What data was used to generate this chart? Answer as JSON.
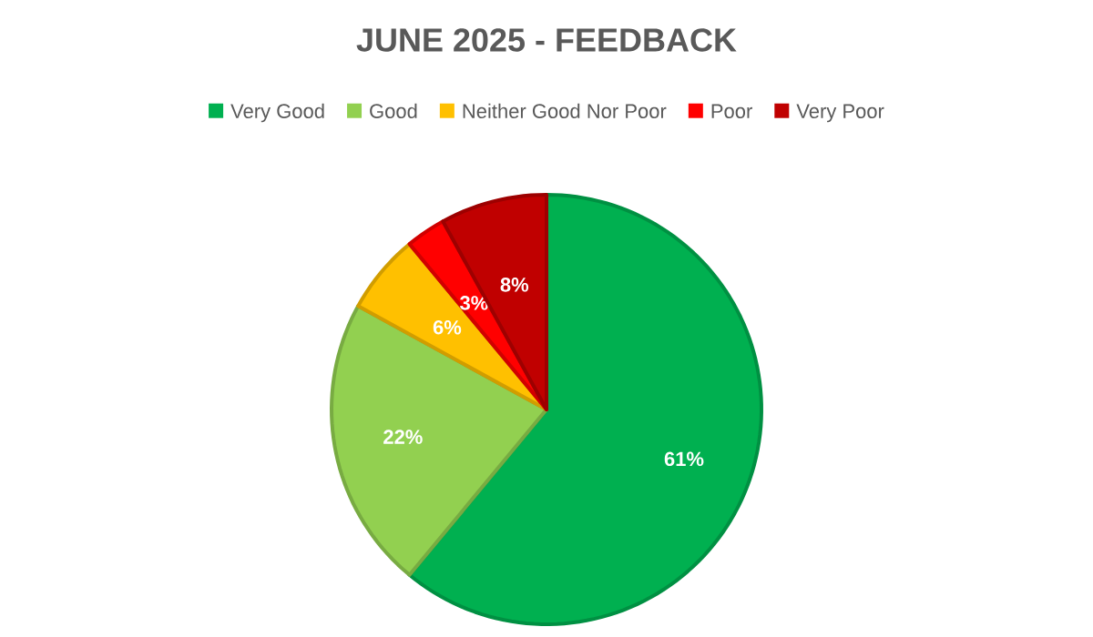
{
  "chart_data": {
    "type": "pie",
    "title": "JUNE 2025 - FEEDBACK",
    "categories": [
      "Very Good",
      "Good",
      "Neither Good Nor Poor",
      "Poor",
      "Very Poor"
    ],
    "values": [
      61,
      22,
      6,
      3,
      8
    ],
    "value_labels": [
      "61%",
      "22%",
      "6%",
      "3%",
      "8%"
    ],
    "colors": [
      "#00b050",
      "#92d050",
      "#ffc000",
      "#ff0000",
      "#c00000"
    ],
    "legend": "top"
  }
}
